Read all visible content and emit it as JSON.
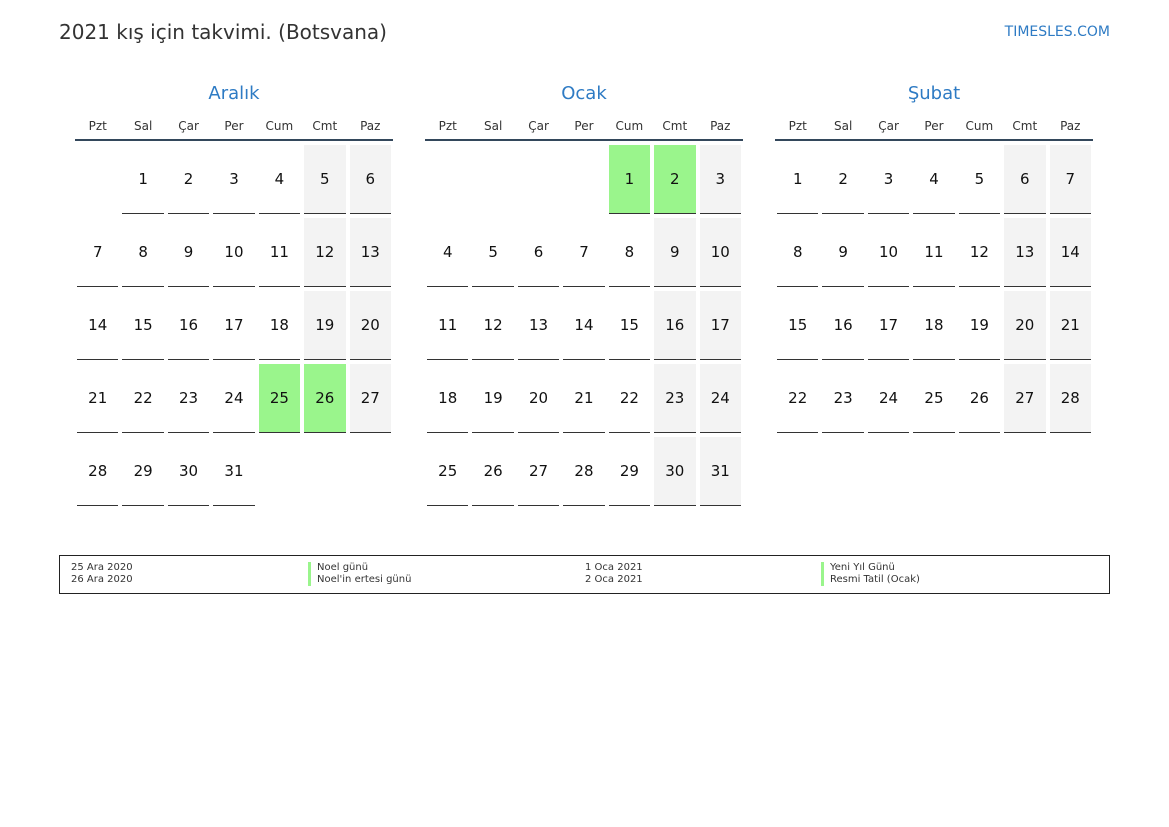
{
  "header": {
    "title": "2021 kış için takvimi. (Botsvana)",
    "site": "TIMESLES.COM"
  },
  "weekdays": [
    "Pzt",
    "Sal",
    "Çar",
    "Per",
    "Cum",
    "Cmt",
    "Paz"
  ],
  "months": [
    {
      "name": "Aralık",
      "offset": 1,
      "days": 31,
      "holidays": [
        25,
        26
      ]
    },
    {
      "name": "Ocak",
      "offset": 4,
      "days": 31,
      "holidays": [
        1,
        2
      ]
    },
    {
      "name": "Şubat",
      "offset": 0,
      "days": 28,
      "holidays": []
    }
  ],
  "legend": [
    {
      "date": "25 Ara 2020",
      "name": "Noel günü"
    },
    {
      "date": "26 Ara 2020",
      "name": "Noel'in ertesi günü"
    },
    {
      "date": "1 Oca 2021",
      "name": "Yeni Yıl Günü"
    },
    {
      "date": "2 Oca 2021",
      "name": "Resmi Tatil (Ocak)"
    }
  ],
  "colors": {
    "accent": "#2e7bc4",
    "holiday": "#9af58c",
    "weekend": "#f3f3f3"
  }
}
